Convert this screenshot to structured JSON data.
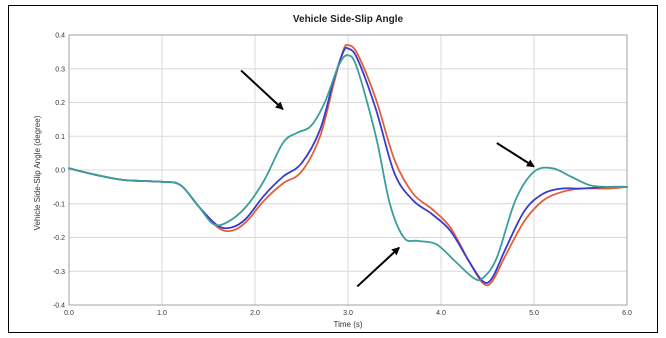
{
  "chart_data": {
    "type": "line",
    "title": "Vehicle Side-Slip Angle",
    "xlabel": "Time (s)",
    "ylabel": "Vehicle Side-Slip Angle (degree)",
    "xlim": [
      0,
      6
    ],
    "ylim": [
      -0.4,
      0.4
    ],
    "x_ticks": [
      "0.0",
      "1.0",
      "2.0",
      "3.0",
      "4.0",
      "5.0",
      "6.0"
    ],
    "y_ticks": [
      "-0.4",
      "-0.3",
      "-0.2",
      "-0.1",
      "0.0",
      "0.1",
      "0.2",
      "0.3",
      "0.4"
    ],
    "grid": true,
    "series": [
      {
        "color": "#e0603a",
        "points": [
          [
            0,
            0.005
          ],
          [
            0.3,
            -0.015
          ],
          [
            0.6,
            -0.03
          ],
          [
            1.0,
            -0.035
          ],
          [
            1.2,
            -0.045
          ],
          [
            1.4,
            -0.11
          ],
          [
            1.6,
            -0.17
          ],
          [
            1.75,
            -0.18
          ],
          [
            1.9,
            -0.155
          ],
          [
            2.1,
            -0.09
          ],
          [
            2.3,
            -0.04
          ],
          [
            2.5,
            -0.005
          ],
          [
            2.7,
            0.1
          ],
          [
            2.85,
            0.26
          ],
          [
            2.95,
            0.355
          ],
          [
            3.0,
            0.37
          ],
          [
            3.1,
            0.345
          ],
          [
            3.3,
            0.21
          ],
          [
            3.5,
            0.03
          ],
          [
            3.7,
            -0.07
          ],
          [
            3.9,
            -0.115
          ],
          [
            4.1,
            -0.17
          ],
          [
            4.3,
            -0.27
          ],
          [
            4.45,
            -0.335
          ],
          [
            4.55,
            -0.33
          ],
          [
            4.7,
            -0.25
          ],
          [
            4.9,
            -0.15
          ],
          [
            5.1,
            -0.09
          ],
          [
            5.3,
            -0.065
          ],
          [
            5.5,
            -0.055
          ],
          [
            5.8,
            -0.055
          ],
          [
            6.0,
            -0.05
          ]
        ]
      },
      {
        "color": "#3a3ad0",
        "points": [
          [
            0,
            0.005
          ],
          [
            0.3,
            -0.015
          ],
          [
            0.6,
            -0.03
          ],
          [
            1.0,
            -0.035
          ],
          [
            1.2,
            -0.045
          ],
          [
            1.4,
            -0.11
          ],
          [
            1.6,
            -0.165
          ],
          [
            1.75,
            -0.17
          ],
          [
            1.9,
            -0.145
          ],
          [
            2.1,
            -0.075
          ],
          [
            2.3,
            -0.02
          ],
          [
            2.5,
            0.02
          ],
          [
            2.7,
            0.12
          ],
          [
            2.85,
            0.27
          ],
          [
            2.95,
            0.35
          ],
          [
            3.0,
            0.36
          ],
          [
            3.1,
            0.33
          ],
          [
            3.3,
            0.18
          ],
          [
            3.5,
            -0.01
          ],
          [
            3.7,
            -0.09
          ],
          [
            3.9,
            -0.13
          ],
          [
            4.1,
            -0.18
          ],
          [
            4.3,
            -0.27
          ],
          [
            4.45,
            -0.33
          ],
          [
            4.55,
            -0.32
          ],
          [
            4.7,
            -0.23
          ],
          [
            4.9,
            -0.12
          ],
          [
            5.1,
            -0.07
          ],
          [
            5.3,
            -0.055
          ],
          [
            5.5,
            -0.055
          ],
          [
            5.8,
            -0.05
          ],
          [
            6.0,
            -0.05
          ]
        ]
      },
      {
        "color": "#3c9e9a",
        "points": [
          [
            0,
            0.005
          ],
          [
            0.3,
            -0.015
          ],
          [
            0.6,
            -0.03
          ],
          [
            1.0,
            -0.035
          ],
          [
            1.2,
            -0.045
          ],
          [
            1.4,
            -0.11
          ],
          [
            1.55,
            -0.16
          ],
          [
            1.7,
            -0.155
          ],
          [
            1.9,
            -0.11
          ],
          [
            2.1,
            -0.03
          ],
          [
            2.3,
            0.08
          ],
          [
            2.45,
            0.11
          ],
          [
            2.6,
            0.13
          ],
          [
            2.75,
            0.2
          ],
          [
            2.9,
            0.31
          ],
          [
            3.0,
            0.34
          ],
          [
            3.1,
            0.3
          ],
          [
            3.3,
            0.1
          ],
          [
            3.45,
            -0.1
          ],
          [
            3.6,
            -0.2
          ],
          [
            3.75,
            -0.21
          ],
          [
            3.95,
            -0.22
          ],
          [
            4.15,
            -0.27
          ],
          [
            4.35,
            -0.32
          ],
          [
            4.45,
            -0.32
          ],
          [
            4.6,
            -0.26
          ],
          [
            4.8,
            -0.09
          ],
          [
            5.0,
            -0.005
          ],
          [
            5.2,
            0.005
          ],
          [
            5.4,
            -0.02
          ],
          [
            5.6,
            -0.045
          ],
          [
            5.8,
            -0.05
          ],
          [
            6.0,
            -0.05
          ]
        ]
      }
    ],
    "annotations": [
      {
        "type": "arrow",
        "from": [
          1.85,
          0.295
        ],
        "to": [
          2.3,
          0.18
        ],
        "color": "#000000"
      },
      {
        "type": "arrow",
        "from": [
          3.1,
          -0.345
        ],
        "to": [
          3.55,
          -0.23
        ],
        "color": "#000000"
      },
      {
        "type": "arrow",
        "from": [
          4.6,
          0.08
        ],
        "to": [
          5.0,
          0.01
        ],
        "color": "#000000"
      }
    ]
  }
}
